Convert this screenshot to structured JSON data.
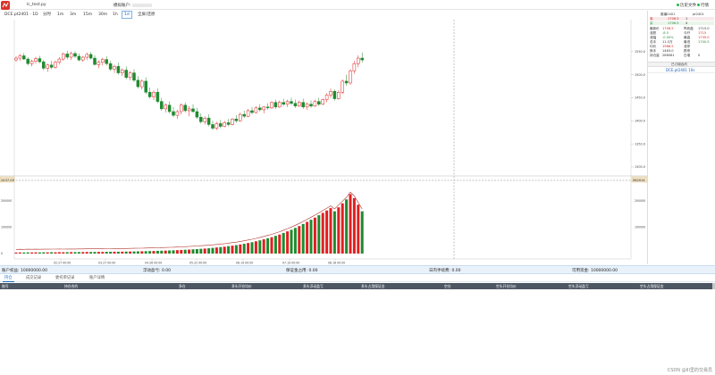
{
  "window": {
    "app_title": "lc_test.py",
    "account_label": "模拟账户:",
    "data_status": "历史文件",
    "trade_status": "行情"
  },
  "toolbar": {
    "symbol": "DCE.pt2401 · 1D",
    "periods": [
      "分时",
      "1m",
      "3m",
      "15m",
      "30m",
      "1h",
      "1d"
    ],
    "active_period": "1d",
    "fullscreen": "全屏/还原"
  },
  "price_axis": [
    "1550.0",
    "1500.0",
    "1450.0",
    "1400.0",
    "1350.0",
    "1300.0"
  ],
  "volume_axis": [
    "200000",
    "100000",
    "0"
  ],
  "volume_axis_right": [
    "200000",
    "100000"
  ],
  "time_axis": [
    "02.27 00:00",
    "03.27 00:00",
    "04.26 00:00",
    "05.22 00:00",
    "06.19 00:00",
    "07.19 00:00",
    "08.16 00:00"
  ],
  "crosshair": {
    "price_tag": "2437.00",
    "value_tag": "582014"
  },
  "right_panel": {
    "header": {
      "left": "委编2401",
      "right": "pt2401"
    },
    "ask": {
      "label": "卖",
      "price": "1706.5",
      "vol": "1"
    },
    "bid": {
      "label": "买",
      "price": "1706.5",
      "vol": "4"
    },
    "quote_rows": [
      {
        "l_label": "最新价",
        "l_val": "1706.5",
        "r_label": "昨收盘",
        "r_val": "1715.0"
      },
      {
        "l_label": "涨跌",
        "l_val": "-8.5",
        "r_label": "今开",
        "r_val": "1715"
      },
      {
        "l_label": "涨幅",
        "l_val": "-0.50%",
        "r_label": "最高",
        "r_val": "1735.0"
      },
      {
        "l_label": "总手",
        "l_val": "11.5万",
        "r_label": "最低",
        "r_val": "1700.5"
      },
      {
        "l_label": "均价",
        "l_val": "1966.5",
        "r_label": "涨停",
        "r_val": ""
      },
      {
        "l_label": "换手",
        "l_val": "1463.0",
        "r_label": "跌停",
        "r_val": ""
      },
      {
        "l_label": "持仓量",
        "l_val": "286081",
        "r_label": "日增",
        "r_val": "0"
      }
    ],
    "contract_title": "已订阅合约",
    "contract_item": "DCE.pt2401 10s"
  },
  "account": {
    "equity_label": "账户权益:",
    "equity": "10000000.00",
    "float_pnl_label": "浮动盈亏:",
    "float_pnl": "0.00",
    "margin_label": "保证金占用:",
    "margin": "0.00",
    "fee_label": "日内手续费:",
    "fee": "0.00",
    "available_label": "可用资金:",
    "available": "10000000.00"
  },
  "tabs": [
    "持仓",
    "成交记录",
    "委托单记录",
    "账户详情"
  ],
  "active_tab": "持仓",
  "table_headers": [
    "账号",
    "持仓合约",
    "多仓",
    "多头开仓均价",
    "多头浮动盈亏",
    "多头占用保证金",
    "空仓",
    "空头开仓均价",
    "空头浮动盈亏",
    "空头占用保证金"
  ],
  "watermark": "CSDN @III里的交易员",
  "colors": {
    "up": "#e02020",
    "down": "#1f8a2f",
    "accent": "#1a6bc2",
    "ma_line": "#b0322b"
  },
  "chart_data": {
    "type": "candlestick",
    "price_ylim": [
      1300.0,
      1600.0
    ],
    "volume_ylim": [
      0,
      250000
    ],
    "candles": [
      [
        1532,
        1540,
        1528,
        1536
      ],
      [
        1536,
        1545,
        1530,
        1541
      ],
      [
        1541,
        1547,
        1532,
        1534
      ],
      [
        1534,
        1538,
        1520,
        1524
      ],
      [
        1524,
        1533,
        1518,
        1529
      ],
      [
        1529,
        1539,
        1524,
        1535
      ],
      [
        1535,
        1541,
        1525,
        1528
      ],
      [
        1528,
        1532,
        1510,
        1514
      ],
      [
        1514,
        1524,
        1506,
        1521
      ],
      [
        1521,
        1530,
        1512,
        1516
      ],
      [
        1516,
        1530,
        1513,
        1527
      ],
      [
        1527,
        1538,
        1522,
        1534
      ],
      [
        1534,
        1548,
        1530,
        1545
      ],
      [
        1545,
        1552,
        1533,
        1538
      ],
      [
        1538,
        1550,
        1532,
        1546
      ],
      [
        1546,
        1551,
        1536,
        1540
      ],
      [
        1540,
        1546,
        1529,
        1532
      ],
      [
        1532,
        1541,
        1528,
        1538
      ],
      [
        1538,
        1548,
        1532,
        1544
      ],
      [
        1544,
        1549,
        1533,
        1536
      ],
      [
        1536,
        1542,
        1520,
        1522
      ],
      [
        1522,
        1531,
        1514,
        1527
      ],
      [
        1527,
        1537,
        1520,
        1533
      ],
      [
        1533,
        1540,
        1520,
        1524
      ],
      [
        1524,
        1530,
        1508,
        1512
      ],
      [
        1512,
        1522,
        1504,
        1518
      ],
      [
        1518,
        1526,
        1500,
        1504
      ],
      [
        1504,
        1514,
        1497,
        1510
      ],
      [
        1510,
        1518,
        1490,
        1494
      ],
      [
        1494,
        1508,
        1488,
        1504
      ],
      [
        1504,
        1512,
        1484,
        1488
      ],
      [
        1488,
        1497,
        1470,
        1474
      ],
      [
        1474,
        1490,
        1468,
        1486
      ],
      [
        1486,
        1494,
        1458,
        1462
      ],
      [
        1462,
        1472,
        1448,
        1452
      ],
      [
        1452,
        1466,
        1445,
        1462
      ],
      [
        1462,
        1470,
        1438,
        1442
      ],
      [
        1442,
        1450,
        1422,
        1426
      ],
      [
        1426,
        1438,
        1418,
        1434
      ],
      [
        1434,
        1442,
        1416,
        1420
      ],
      [
        1420,
        1430,
        1408,
        1412
      ],
      [
        1412,
        1424,
        1404,
        1420
      ],
      [
        1420,
        1438,
        1414,
        1434
      ],
      [
        1434,
        1440,
        1418,
        1422
      ],
      [
        1422,
        1432,
        1410,
        1426
      ],
      [
        1426,
        1436,
        1418,
        1420
      ],
      [
        1420,
        1428,
        1404,
        1408
      ],
      [
        1408,
        1416,
        1394,
        1398
      ],
      [
        1398,
        1410,
        1392,
        1406
      ],
      [
        1406,
        1414,
        1388,
        1392
      ],
      [
        1392,
        1400,
        1380,
        1384
      ],
      [
        1384,
        1398,
        1380,
        1394
      ],
      [
        1394,
        1402,
        1384,
        1388
      ],
      [
        1388,
        1400,
        1386,
        1396
      ],
      [
        1396,
        1404,
        1388,
        1392
      ],
      [
        1392,
        1406,
        1390,
        1404
      ],
      [
        1404,
        1412,
        1396,
        1400
      ],
      [
        1400,
        1418,
        1398,
        1414
      ],
      [
        1414,
        1422,
        1406,
        1410
      ],
      [
        1410,
        1426,
        1408,
        1422
      ],
      [
        1422,
        1430,
        1414,
        1418
      ],
      [
        1418,
        1432,
        1416,
        1428
      ],
      [
        1428,
        1436,
        1420,
        1424
      ],
      [
        1424,
        1432,
        1416,
        1430
      ],
      [
        1430,
        1438,
        1424,
        1428
      ],
      [
        1428,
        1442,
        1426,
        1440
      ],
      [
        1440,
        1446,
        1426,
        1430
      ],
      [
        1430,
        1444,
        1428,
        1440
      ],
      [
        1440,
        1448,
        1432,
        1436
      ],
      [
        1436,
        1446,
        1430,
        1442
      ],
      [
        1442,
        1450,
        1434,
        1438
      ],
      [
        1438,
        1446,
        1428,
        1432
      ],
      [
        1432,
        1444,
        1430,
        1440
      ],
      [
        1440,
        1448,
        1426,
        1430
      ],
      [
        1430,
        1440,
        1424,
        1436
      ],
      [
        1436,
        1444,
        1428,
        1432
      ],
      [
        1432,
        1446,
        1430,
        1442
      ],
      [
        1442,
        1450,
        1432,
        1436
      ],
      [
        1436,
        1448,
        1434,
        1446
      ],
      [
        1446,
        1460,
        1440,
        1456
      ],
      [
        1456,
        1470,
        1450,
        1464
      ],
      [
        1464,
        1468,
        1444,
        1448
      ],
      [
        1448,
        1466,
        1446,
        1462
      ],
      [
        1462,
        1490,
        1458,
        1486
      ],
      [
        1486,
        1500,
        1476,
        1482
      ],
      [
        1482,
        1512,
        1478,
        1508
      ],
      [
        1508,
        1530,
        1502,
        1524
      ],
      [
        1524,
        1542,
        1516,
        1536
      ],
      [
        1536,
        1548,
        1526,
        1532
      ]
    ],
    "volumes": [
      4000,
      4200,
      4100,
      4500,
      4300,
      4600,
      4400,
      4800,
      4700,
      5000,
      4900,
      5200,
      5100,
      5300,
      5500,
      5400,
      5600,
      5800,
      6000,
      5900,
      6200,
      6400,
      6300,
      6600,
      6800,
      7000,
      6900,
      7200,
      7500,
      7800,
      8000,
      8300,
      8600,
      9000,
      9400,
      9800,
      10200,
      10700,
      11200,
      11800,
      12400,
      13000,
      13700,
      14400,
      15200,
      16000,
      17000,
      18000,
      19000,
      20000,
      21500,
      23000,
      24500,
      26000,
      28000,
      30000,
      32000,
      34500,
      37000,
      40000,
      43000,
      46500,
      50000,
      54000,
      58000,
      62000,
      67000,
      72000,
      78000,
      84000,
      90000,
      97000,
      104000,
      112000,
      120000,
      128000,
      136000,
      145000,
      154000,
      163000,
      172000,
      160000,
      175000,
      190000,
      205000,
      225000,
      210000,
      185000,
      160000
    ],
    "volume_line": "cumulative-style trend overlay"
  }
}
